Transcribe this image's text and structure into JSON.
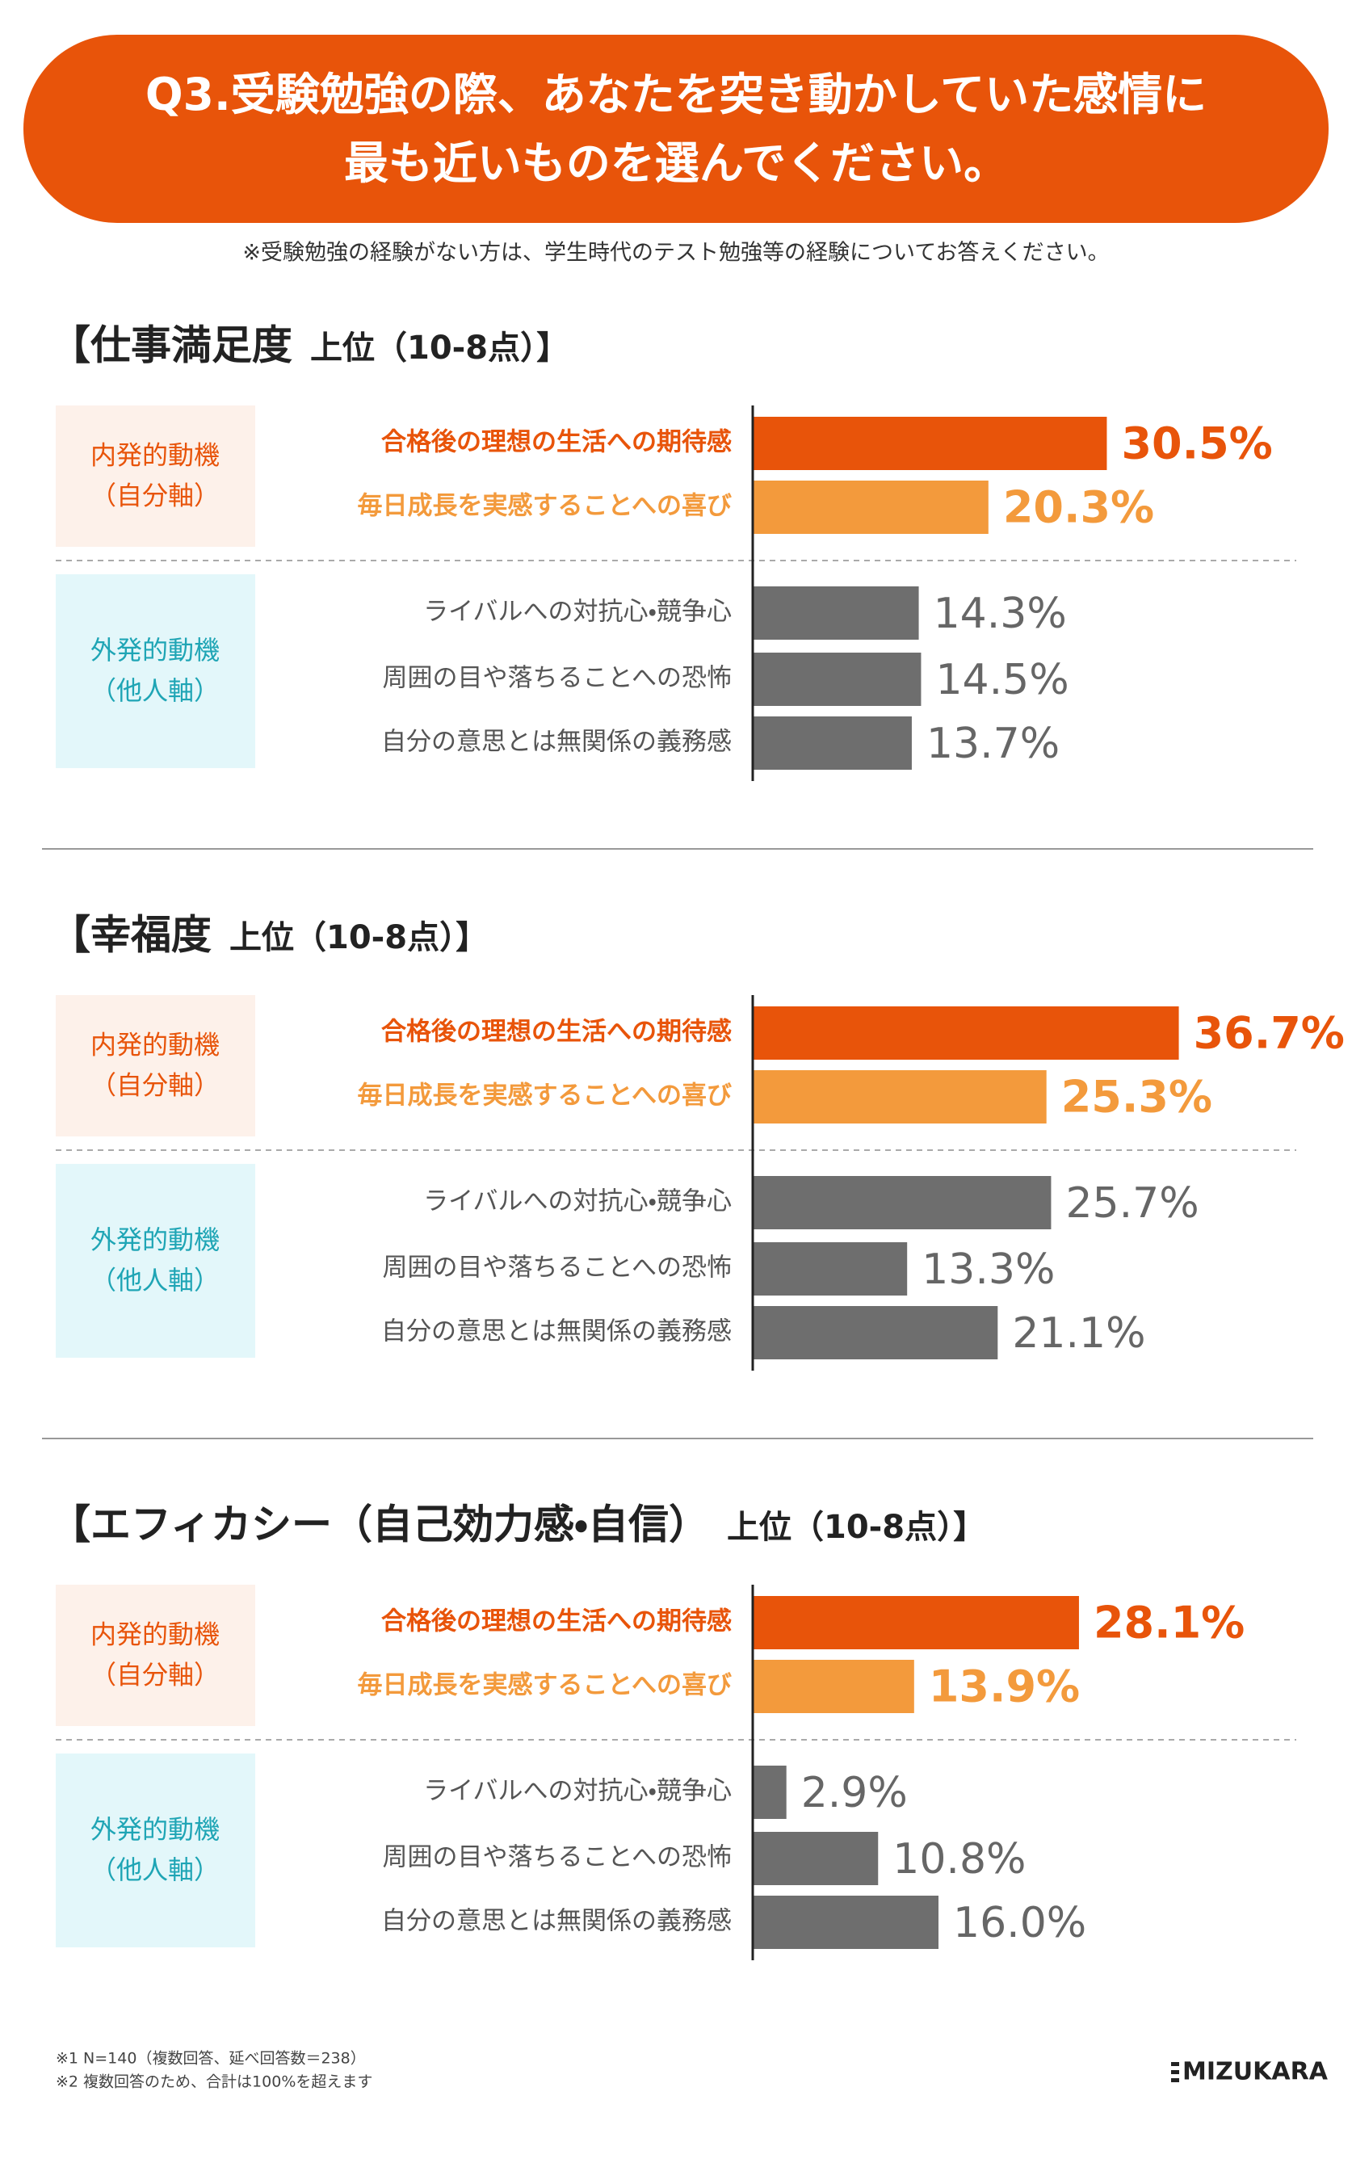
{
  "header": {
    "question": [
      "Q3.受験勉強の際、あなたを突き動かしていた感情に",
      "最も近いものを選んでください。"
    ],
    "note": "※受験勉強の経験がない方は、学生時代のテスト勉強等の経験についてお答えください。"
  },
  "chart_data": [
    {
      "type": "bar",
      "title": "【仕事満足度",
      "subtitle": "上位（10-8点）】",
      "xlim": [
        0,
        48
      ],
      "groups": [
        {
          "label": [
            "内発的動機",
            "（自分軸）"
          ],
          "box_color": "#fdf1ea",
          "label_color": "#e8540a",
          "categories": [
            "合格後の理想の生活への期待感",
            "毎日成長を実感することへの喜び"
          ],
          "values": [
            30.5,
            20.3
          ],
          "value_labels": [
            "30.5%",
            "20.3%"
          ],
          "colors": [
            "#e8540a",
            "#f39a3c"
          ]
        },
        {
          "label": [
            "外発的動機",
            "（他人軸）"
          ],
          "box_color": "#e3f7fa",
          "label_color": "#1fa5b5",
          "categories": [
            "ライバルへの対抗心・競争心",
            "周囲の目や落ちることへの恐怖",
            "自分の意思とは無関係の義務感"
          ],
          "values": [
            14.3,
            14.5,
            13.7
          ],
          "value_labels": [
            "14.3%",
            "14.5%",
            "13.7%"
          ],
          "colors": [
            "#6e6e6e",
            "#6e6e6e",
            "#6e6e6e"
          ]
        }
      ]
    },
    {
      "type": "bar",
      "title": "【幸福度",
      "subtitle": "上位（10-8点）】",
      "xlim": [
        0,
        48
      ],
      "groups": [
        {
          "label": [
            "内発的動機",
            "（自分軸）"
          ],
          "box_color": "#fdf1ea",
          "label_color": "#e8540a",
          "categories": [
            "合格後の理想の生活への期待感",
            "毎日成長を実感することへの喜び"
          ],
          "values": [
            36.7,
            25.3
          ],
          "value_labels": [
            "36.7%",
            "25.3%"
          ],
          "colors": [
            "#e8540a",
            "#f39a3c"
          ]
        },
        {
          "label": [
            "外発的動機",
            "（他人軸）"
          ],
          "box_color": "#e3f7fa",
          "label_color": "#1fa5b5",
          "categories": [
            "ライバルへの対抗心・競争心",
            "周囲の目や落ちることへの恐怖",
            "自分の意思とは無関係の義務感"
          ],
          "values": [
            25.7,
            13.3,
            21.1
          ],
          "value_labels": [
            "25.7%",
            "13.3%",
            "21.1%"
          ],
          "colors": [
            "#6e6e6e",
            "#6e6e6e",
            "#6e6e6e"
          ]
        }
      ]
    },
    {
      "type": "bar",
      "title": "【エフィカシー（自己効力感・自信）",
      "subtitle": "上位（10-8点）】",
      "xlim": [
        0,
        48
      ],
      "groups": [
        {
          "label": [
            "内発的動機",
            "（自分軸）"
          ],
          "box_color": "#fdf1ea",
          "label_color": "#e8540a",
          "categories": [
            "合格後の理想の生活への期待感",
            "毎日成長を実感することへの喜び"
          ],
          "values": [
            28.1,
            13.9
          ],
          "value_labels": [
            "28.1%",
            "13.9%"
          ],
          "colors": [
            "#e8540a",
            "#f39a3c"
          ]
        },
        {
          "label": [
            "外発的動機",
            "（他人軸）"
          ],
          "box_color": "#e3f7fa",
          "label_color": "#1fa5b5",
          "categories": [
            "ライバルへの対抗心・競争心",
            "周囲の目や落ちることへの恐怖",
            "自分の意思とは無関係の義務感"
          ],
          "values": [
            2.9,
            10.8,
            16.0
          ],
          "value_labels": [
            "2.9%",
            "10.8%",
            "16.0%"
          ],
          "colors": [
            "#6e6e6e",
            "#6e6e6e",
            "#6e6e6e"
          ]
        }
      ]
    }
  ],
  "footnotes": [
    "※1 N=140（複数回答、延べ回答数＝238）",
    "※2 複数回答のため、合計は100%を超えます"
  ],
  "logo": "MIZUKARA"
}
